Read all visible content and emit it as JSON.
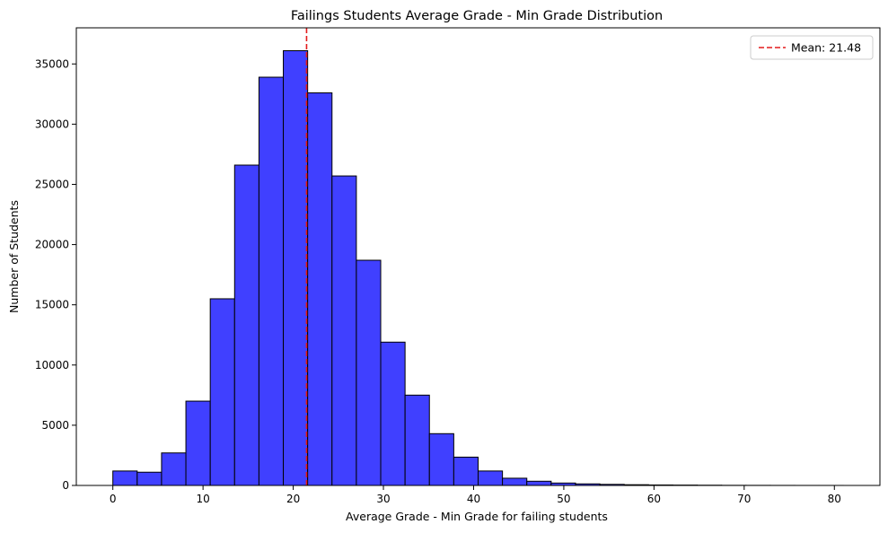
{
  "chart_data": {
    "type": "bar",
    "title": "Failings Students Average Grade - Min Grade Distribution",
    "xlabel": "Average Grade - Min Grade for failing students",
    "ylabel": "Number of Students",
    "xlim": [
      -4.05,
      85.05
    ],
    "ylim": [
      0,
      38000
    ],
    "xticks": [
      0,
      10,
      20,
      30,
      40,
      50,
      60,
      70,
      80
    ],
    "yticks": [
      0,
      5000,
      10000,
      15000,
      20000,
      25000,
      30000,
      35000
    ],
    "bin_start": 0,
    "bin_width": 2.7,
    "values": [
      1200,
      1100,
      2700,
      7000,
      15500,
      26600,
      33900,
      36100,
      32600,
      25700,
      18700,
      11900,
      7500,
      4300,
      2350,
      1200,
      600,
      350,
      200,
      130,
      90,
      60,
      40,
      30,
      20,
      10,
      8,
      5,
      3,
      2
    ],
    "bar_color": "#4040ff",
    "mean_line": {
      "value": 21.48,
      "color": "#e31a1c",
      "style": "dashed"
    },
    "legend": {
      "label": "Mean: 21.48",
      "placement": "top-right"
    },
    "grid": false
  }
}
